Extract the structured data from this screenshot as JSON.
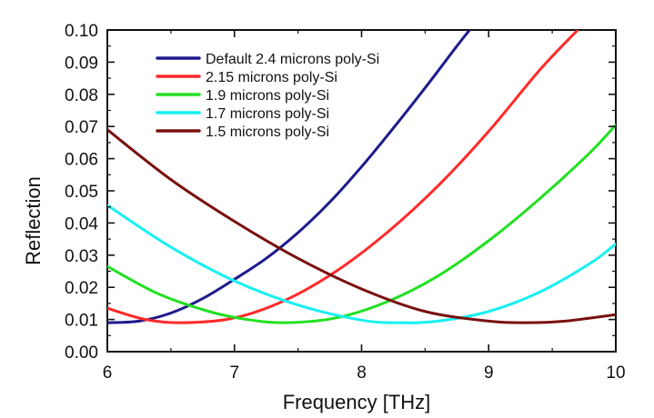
{
  "chart_data": {
    "type": "line",
    "title": "",
    "xlabel": "Frequency [THz]",
    "ylabel": "Reflection",
    "xlim": [
      6,
      10
    ],
    "ylim": [
      0.0,
      0.1
    ],
    "x_ticks": [
      6,
      7,
      8,
      9,
      10
    ],
    "x_tick_labels": [
      "6",
      "7",
      "8",
      "9",
      "10"
    ],
    "y_ticks": [
      0.0,
      0.01,
      0.02,
      0.03,
      0.04,
      0.05,
      0.06,
      0.07,
      0.08,
      0.09,
      0.1
    ],
    "y_tick_labels": [
      "0.00",
      "0.01",
      "0.02",
      "0.03",
      "0.04",
      "0.05",
      "0.06",
      "0.07",
      "0.08",
      "0.09",
      "0.10"
    ],
    "grid": false,
    "legend_position": "top-left",
    "series": [
      {
        "name": "Default 2.4 microns poly-Si",
        "color": "#1f1a8c",
        "x": [
          6.0,
          6.25,
          6.5,
          6.75,
          7.0,
          7.25,
          7.5,
          7.75,
          8.0,
          8.25,
          8.5,
          8.75,
          8.85
        ],
        "y": [
          0.009,
          0.0095,
          0.012,
          0.0165,
          0.0225,
          0.029,
          0.037,
          0.0465,
          0.0575,
          0.0695,
          0.082,
          0.095,
          0.1
        ]
      },
      {
        "name": "2.15 microns poly-Si",
        "color": "#ff2a2a",
        "x": [
          6.0,
          6.3,
          6.6,
          7.0,
          7.4,
          7.8,
          8.2,
          8.6,
          9.0,
          9.4,
          9.7
        ],
        "y": [
          0.0135,
          0.01,
          0.009,
          0.0105,
          0.016,
          0.025,
          0.037,
          0.0515,
          0.0685,
          0.0875,
          0.1
        ]
      },
      {
        "name": "1.9 microns poly-Si",
        "color": "#22e022",
        "x": [
          6.0,
          6.4,
          6.8,
          7.1,
          7.4,
          7.8,
          8.2,
          8.6,
          9.0,
          9.4,
          9.8,
          10.0
        ],
        "y": [
          0.0265,
          0.018,
          0.0125,
          0.01,
          0.009,
          0.0105,
          0.0155,
          0.0235,
          0.0345,
          0.0475,
          0.062,
          0.0705
        ]
      },
      {
        "name": "1.7 microns poly-Si",
        "color": "#18f0f0",
        "x": [
          6.0,
          6.5,
          7.0,
          7.5,
          8.0,
          8.3,
          8.6,
          9.0,
          9.4,
          9.8,
          10.0
        ],
        "y": [
          0.0455,
          0.0325,
          0.022,
          0.0145,
          0.0098,
          0.009,
          0.0095,
          0.0125,
          0.0185,
          0.0275,
          0.0335
        ]
      },
      {
        "name": "1.5 microns poly-Si",
        "color": "#7a1010",
        "x": [
          6.0,
          6.5,
          7.0,
          7.5,
          8.0,
          8.5,
          9.0,
          9.3,
          9.6,
          10.0
        ],
        "y": [
          0.069,
          0.0535,
          0.0405,
          0.029,
          0.0195,
          0.0125,
          0.0095,
          0.009,
          0.0095,
          0.0115
        ]
      }
    ]
  }
}
